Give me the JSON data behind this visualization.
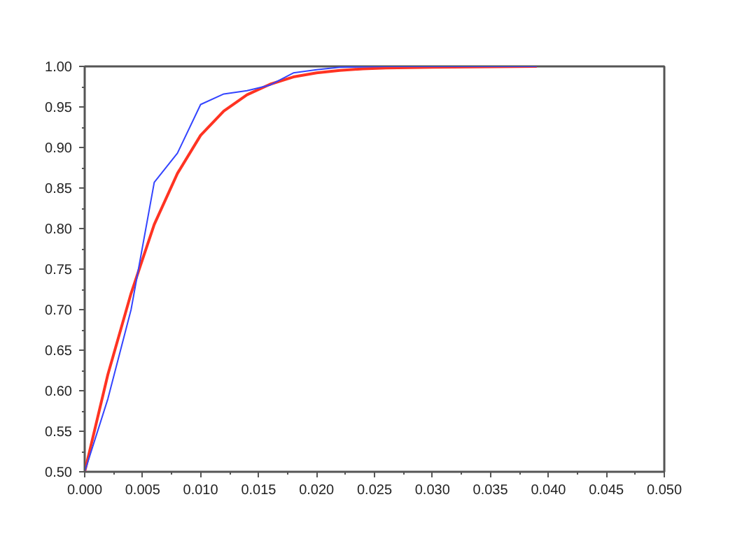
{
  "chart_data": {
    "type": "line",
    "xlim": [
      0,
      0.05
    ],
    "ylim": [
      0.5,
      1.0
    ],
    "xticks": [
      {
        "value": 0,
        "label": "0.000"
      },
      {
        "value": 0.005,
        "label": "0.005"
      },
      {
        "value": 0.01,
        "label": "0.010"
      },
      {
        "value": 0.015,
        "label": "0.015"
      },
      {
        "value": 0.02,
        "label": "0.020"
      },
      {
        "value": 0.025,
        "label": "0.025"
      },
      {
        "value": 0.03,
        "label": "0.030"
      },
      {
        "value": 0.035,
        "label": "0.035"
      },
      {
        "value": 0.04,
        "label": "0.040"
      },
      {
        "value": 0.045,
        "label": "0.045"
      },
      {
        "value": 0.05,
        "label": "0.050"
      }
    ],
    "yticks": [
      {
        "value": 0.5,
        "label": "0.50"
      },
      {
        "value": 0.55,
        "label": "0.55"
      },
      {
        "value": 0.6,
        "label": "0.60"
      },
      {
        "value": 0.65,
        "label": "0.65"
      },
      {
        "value": 0.7,
        "label": "0.70"
      },
      {
        "value": 0.75,
        "label": "0.75"
      },
      {
        "value": 0.8,
        "label": "0.80"
      },
      {
        "value": 0.85,
        "label": "0.85"
      },
      {
        "value": 0.9,
        "label": "0.90"
      },
      {
        "value": 0.95,
        "label": "0.95"
      },
      {
        "value": 1.0,
        "label": "1.00"
      }
    ],
    "grid": false,
    "series": [
      {
        "color": "#ff3322",
        "x": [
          0,
          0.002,
          0.004,
          0.006,
          0.008,
          0.01,
          0.012,
          0.014,
          0.016,
          0.018,
          0.02,
          0.022,
          0.024,
          0.026,
          0.03,
          0.039
        ],
        "values": [
          0.5,
          0.62,
          0.72,
          0.805,
          0.868,
          0.915,
          0.945,
          0.965,
          0.978,
          0.987,
          0.992,
          0.995,
          0.997,
          0.998,
          0.999,
          1.0
        ]
      },
      {
        "color": "#3344ff",
        "x": [
          0,
          0.002,
          0.004,
          0.006,
          0.008,
          0.01,
          0.012,
          0.014,
          0.016,
          0.018,
          0.02,
          0.022,
          0.026,
          0.03,
          0.039
        ],
        "values": [
          0.5,
          0.59,
          0.7,
          0.857,
          0.893,
          0.953,
          0.966,
          0.97,
          0.977,
          0.992,
          0.996,
          0.999,
          1.0,
          1.0,
          1.0
        ]
      }
    ]
  }
}
